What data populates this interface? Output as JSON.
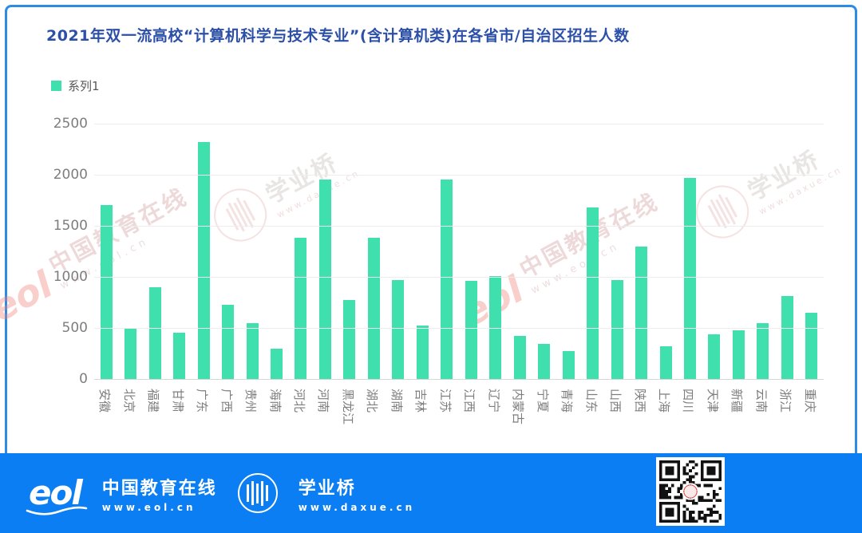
{
  "header": {
    "title": "2021年双一流高校“计算机科学与技术专业”(含计算机类)在各省市/自治区招生人数"
  },
  "legend": {
    "series_label": "系列1",
    "swatch_color": "#3fe0ad"
  },
  "chart_data": {
    "type": "bar",
    "title": "2021年双一流高校“计算机科学与技术专业”(含计算机类)在各省市/自治区招生人数",
    "categories": [
      "安徽",
      "北京",
      "福建",
      "甘肃",
      "广东",
      "广西",
      "贵州",
      "海南",
      "河北",
      "河南",
      "黑龙江",
      "湖北",
      "湖南",
      "吉林",
      "江苏",
      "江西",
      "辽宁",
      "内蒙古",
      "宁夏",
      "青海",
      "山东",
      "山西",
      "陕西",
      "上海",
      "四川",
      "天津",
      "新疆",
      "云南",
      "浙江",
      "重庆"
    ],
    "series": [
      {
        "name": "系列1",
        "values": [
          1700,
          490,
          900,
          450,
          2320,
          730,
          550,
          300,
          1380,
          1950,
          770,
          1380,
          970,
          525,
          1950,
          960,
          1010,
          420,
          340,
          275,
          1680,
          965,
          1300,
          320,
          1970,
          435,
          480,
          545,
          810,
          645
        ]
      }
    ],
    "xlabel": "",
    "ylabel": "",
    "ylim": [
      0,
      2500
    ],
    "yticks": [
      0,
      500,
      1000,
      1500,
      2000,
      2500
    ],
    "grid": true,
    "legend_position": "top-left",
    "bar_color": "#3fe0ad"
  },
  "watermarks": {
    "eol": {
      "logo": "eol",
      "name": "中国教育在线",
      "url": "www.eol.cn"
    },
    "bridge": {
      "name": "学业桥",
      "url": "www.daxue.cn"
    }
  },
  "footer": {
    "bg_color": "#0a7ef2",
    "eol": {
      "logo": "eol",
      "name": "中国教育在线",
      "url": "www.eol.cn"
    },
    "bridge": {
      "name": "学业桥",
      "url": "www.daxue.cn"
    }
  },
  "colors": {
    "frame_border": "#2e8be4",
    "title_text": "#2c4fa8",
    "bar": "#3fe0ad",
    "axis_text": "#7d7d7d",
    "footer_bg": "#0a7ef2"
  }
}
